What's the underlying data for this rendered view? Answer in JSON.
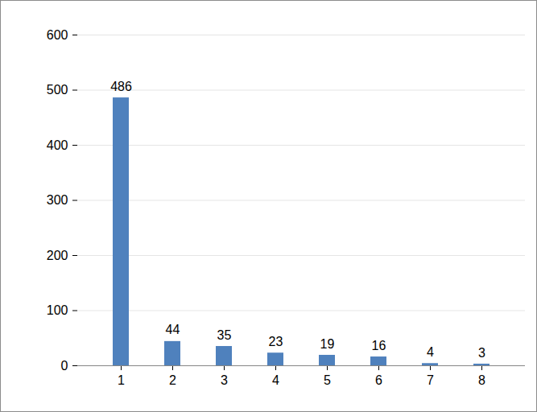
{
  "chart_data": {
    "type": "bar",
    "categories": [
      1,
      2,
      3,
      4,
      5,
      6,
      7,
      8
    ],
    "values": [
      486,
      44,
      35,
      23,
      19,
      16,
      4,
      3
    ],
    "color": "#4f81bd",
    "ylim": [
      0,
      600
    ],
    "yticks": [
      0,
      100,
      200,
      300,
      400,
      500,
      600
    ],
    "grid": true,
    "data_labels": true
  }
}
